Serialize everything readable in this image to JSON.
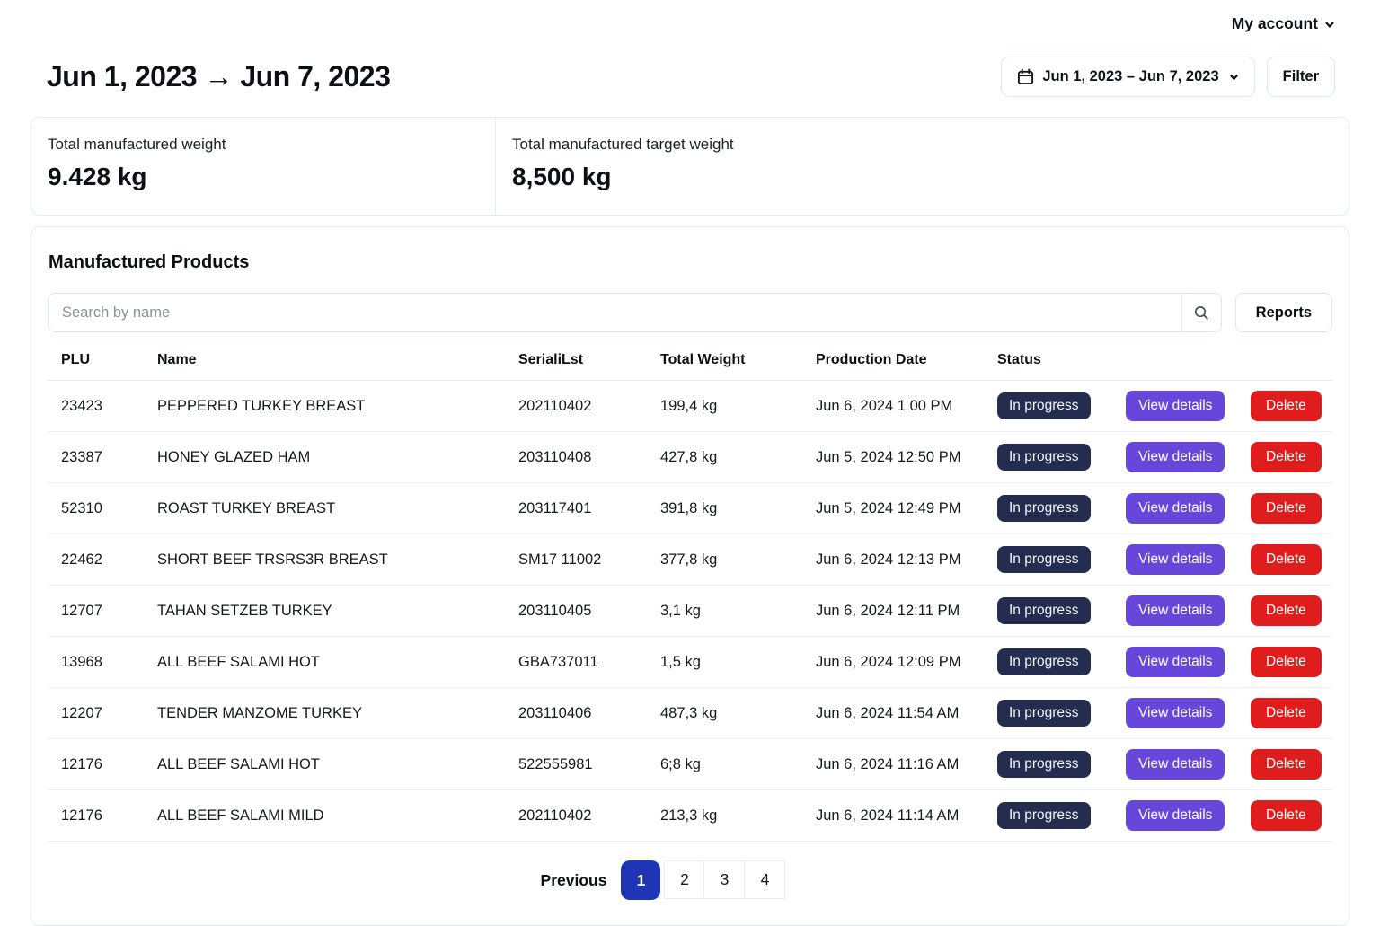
{
  "topbar": {
    "account_label": "My account"
  },
  "header": {
    "title": "Jun 1, 2023 → Jun 7, 2023",
    "date_range": "Jun 1, 2023 – Jun 7, 2023",
    "filter_label": "Filter"
  },
  "stats": [
    {
      "label": "Total manufactured weight",
      "value": "9.428 kg"
    },
    {
      "label": "Total manufactured target weight",
      "value": "8,500 kg"
    }
  ],
  "products": {
    "title": "Manufactured Products",
    "search_placeholder": "Search by name",
    "search_icon": "magnifier",
    "reports_label": "Reports",
    "table": {
      "columns": [
        "PLU",
        "Name",
        "SerialiLst",
        "Total Weight",
        "Production Date",
        "Status"
      ],
      "actions": {
        "view_label": "View details",
        "delete_label": "Delete"
      },
      "rows": [
        {
          "plu": "23423",
          "name": "PEPPERED TURKEY BREAST",
          "serial": "202110402",
          "weight": "199,4 kg",
          "date": "Jun 6, 2024 1 00 PM",
          "status": "In progress"
        },
        {
          "plu": "23387",
          "name": "HONEY GLAZED HAM",
          "serial": "203110408",
          "weight": "427,8 kg",
          "date": "Jun 5, 2024 12:50 PM",
          "status": "In progress"
        },
        {
          "plu": "52310",
          "name": "ROAST TURKEY BREAST",
          "serial": "203117401",
          "weight": "391,8 kg",
          "date": "Jun 5, 2024 12:49 PM",
          "status": "In progress"
        },
        {
          "plu": "22462",
          "name": "SHORT BEEF TRSRS3R BREAST",
          "serial": "SM17 11002",
          "weight": "377,8 kg",
          "date": "Jun 6, 2024 12:13 PM",
          "status": "In progress"
        },
        {
          "plu": "12707",
          "name": "TAHAN SETZEB TURKEY",
          "serial": "203110405",
          "weight": "3,1 kg",
          "date": "Jun 6, 2024 12:11 PM",
          "status": "In progress"
        },
        {
          "plu": "13968",
          "name": "ALL BEEF SALAMI HOT",
          "serial": "GBA737011",
          "weight": "1,5 kg",
          "date": "Jun 6, 2024 12:09 PM",
          "status": "In progress"
        },
        {
          "plu": "12207",
          "name": "TENDER MANZOME TURKEY",
          "serial": "203110406",
          "weight": "487,3 kg",
          "date": "Jun 6, 2024 11:54 AM",
          "status": "In progress"
        },
        {
          "plu": "12176",
          "name": "ALL BEEF SALAMI HOT",
          "serial": "522555981",
          "weight": "6;8 kg",
          "date": "Jun 6, 2024 11:16 AM",
          "status": "In progress"
        },
        {
          "plu": "12176",
          "name": "ALL BEEF SALAMI MILD",
          "serial": "202110402",
          "weight": "213,3 kg",
          "date": "Jun 6, 2024 11:14 AM",
          "status": "In progress"
        }
      ]
    }
  },
  "pagination": {
    "previous_label": "Previous",
    "pages": [
      "1",
      "2",
      "3",
      "4"
    ],
    "active_page": "1"
  },
  "colors": {
    "accent_purple": "#6747D9",
    "danger_red": "#E01D1D",
    "badge_navy": "#242D4F",
    "active_page_blue": "#1E35B5"
  }
}
